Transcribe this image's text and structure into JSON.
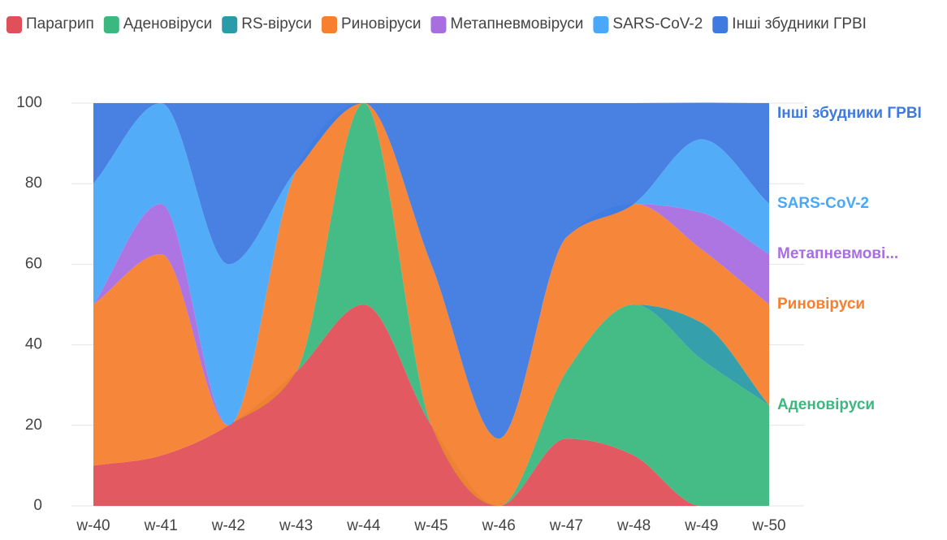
{
  "chart_data": {
    "type": "stacked_area",
    "categories": [
      "w-40",
      "w-41",
      "w-42",
      "w-43",
      "w-44",
      "w-45",
      "w-46",
      "w-47",
      "w-48",
      "w-49",
      "w-50"
    ],
    "ylim": [
      0,
      100
    ],
    "yticks": [
      0,
      20,
      40,
      60,
      80,
      100
    ],
    "grid": true,
    "series": [
      {
        "name": "Парагрип",
        "color": "#e0505a",
        "values": [
          10,
          12.5,
          20,
          33.3,
          50,
          20,
          0,
          16.7,
          12.5,
          0,
          0
        ]
      },
      {
        "name": "Аденовіруси",
        "color": "#3bb87f",
        "values": [
          0,
          0,
          0,
          0,
          50,
          0,
          0,
          16.7,
          37.5,
          36.4,
          25
        ],
        "end_label": "Аденовіруси"
      },
      {
        "name": "RS-віруси",
        "color": "#2a9ba8",
        "values": [
          0,
          0,
          0,
          0,
          0,
          0,
          0,
          0,
          0,
          9.1,
          0
        ]
      },
      {
        "name": "Риновіруси",
        "color": "#f6802e",
        "values": [
          40,
          50,
          0,
          50,
          0,
          40,
          16.7,
          33.3,
          25,
          18.2,
          25
        ],
        "end_label": "Риновіруси"
      },
      {
        "name": "Метапневмовіруси",
        "color": "#a86ee0",
        "values": [
          0,
          12.5,
          0,
          0,
          0,
          0,
          0,
          0,
          0,
          9.1,
          12.5
        ],
        "end_label": "Метапневмові..."
      },
      {
        "name": "SARS-CoV-2",
        "color": "#4aa8f8",
        "values": [
          30,
          25,
          40,
          0,
          0,
          0,
          0,
          0,
          0,
          18.2,
          12.5
        ],
        "end_label": "SARS-CoV-2"
      },
      {
        "name": "Інші збудники ГРВІ",
        "color": "#3f7ae0",
        "values": [
          20,
          0,
          40,
          16.7,
          0,
          40,
          83.3,
          33.3,
          25,
          9.1,
          25
        ],
        "end_label": "Інші збудники ГРВІ"
      }
    ]
  }
}
